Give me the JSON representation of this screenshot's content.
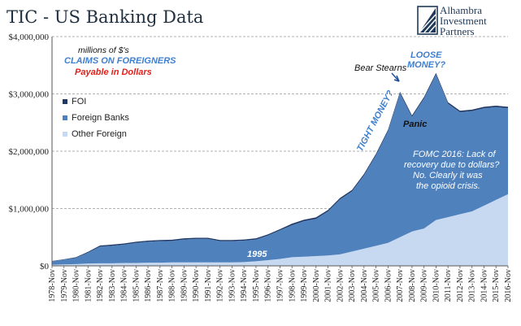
{
  "chart_data": {
    "type": "area",
    "title": "TIC - US Banking Data",
    "x": [
      "1978-Nov",
      "1979-Nov",
      "1980-Nov",
      "1981-Nov",
      "1982-Nov",
      "1983-Nov",
      "1984-Nov",
      "1985-Nov",
      "1986-Nov",
      "1987-Nov",
      "1988-Nov",
      "1989-Nov",
      "1990-Nov",
      "1991-Nov",
      "1992-Nov",
      "1993-Nov",
      "1994-Nov",
      "1995-Nov",
      "1996-Nov",
      "1997-Nov",
      "1998-Nov",
      "1999-Nov",
      "2000-Nov",
      "2001-Nov",
      "2002-Nov",
      "2003-Nov",
      "2004-Nov",
      "2005-Nov",
      "2006-Nov",
      "2007-Nov",
      "2008-Nov",
      "2009-Nov",
      "2010-Nov",
      "2011-Nov",
      "2012-Nov",
      "2013-Nov",
      "2014-Nov",
      "2015-Nov",
      "2016-Nov"
    ],
    "xtick_labels": [
      "1978-Nov",
      "1979-Nov",
      "1980-Nov",
      "1981-Nov",
      "1982-Nov",
      "1983-Nov",
      "1984-Nov",
      "1985-Nov",
      "1986-Nov",
      "1987-Nov",
      "1988-Nov",
      "1989-Nov",
      "1990-Nov",
      "1991-Nov",
      "1992-Nov",
      "1993-Nov",
      "1994-Nov",
      "1995-Nov",
      "1996-Nov",
      "1997-Nov",
      "1998-Nov",
      "1999-Nov",
      "2000-Nov",
      "2001-Nov",
      "2002-Nov",
      "2003-Nov",
      "2004-Nov",
      "2005-Nov",
      "2006-Nov",
      "2007-Nov",
      "2008-Nov",
      "2009-Nov",
      "2010-Nov",
      "2011-Nov",
      "2012-Nov",
      "2013-Nov",
      "2014-Nov",
      "2015-Nov",
      "2016-Nov"
    ],
    "yticks": [
      0,
      1000000,
      2000000,
      3000000,
      4000000
    ],
    "ytick_labels": [
      "$0",
      "$1,000,000",
      "$2,000,000",
      "$3,000,000",
      "$4,000,000"
    ],
    "ylim": [
      0,
      4000000
    ],
    "grid": true,
    "legend_position": "left",
    "stacked": true,
    "series": [
      {
        "name": "Other Foreign",
        "color": "#c6d9f0",
        "values": [
          20000,
          25000,
          30000,
          40000,
          45000,
          45000,
          50000,
          50000,
          55000,
          55000,
          60000,
          60000,
          60000,
          60000,
          60000,
          60000,
          65000,
          80000,
          100000,
          120000,
          150000,
          160000,
          170000,
          180000,
          200000,
          250000,
          300000,
          350000,
          400000,
          500000,
          600000,
          650000,
          800000,
          850000,
          900000,
          950000,
          1050000,
          1150000,
          1250000
        ]
      },
      {
        "name": "Foreign Banks",
        "color": "#4f81bd",
        "values": [
          60000,
          85000,
          110000,
          190000,
          290000,
          305000,
          320000,
          350000,
          365000,
          375000,
          375000,
          400000,
          410000,
          410000,
          370000,
          370000,
          375000,
          380000,
          430000,
          500000,
          560000,
          620000,
          650000,
          770000,
          960000,
          1050000,
          1280000,
          1580000,
          1950000,
          2510000,
          2000000,
          2270000,
          2540000,
          1980000,
          1780000,
          1750000,
          1700000,
          1620000,
          1500000
        ]
      },
      {
        "name": "FOI",
        "color": "#1f3864",
        "values": [
          5000,
          5000,
          10000,
          15000,
          20000,
          20000,
          20000,
          20000,
          20000,
          20000,
          20000,
          20000,
          20000,
          20000,
          20000,
          20000,
          20000,
          20000,
          20000,
          20000,
          25000,
          25000,
          25000,
          25000,
          25000,
          25000,
          25000,
          25000,
          25000,
          25000,
          25000,
          25000,
          25000,
          25000,
          25000,
          25000,
          25000,
          25000,
          25000
        ]
      }
    ],
    "annotations": {
      "units": "millions of $'s",
      "claims": "CLAIMS ON FOREIGNERS",
      "payable": "Payable in Dollars",
      "bear": "Bear Stearns",
      "loose1": "LOOSE",
      "loose2": "MONEY?",
      "tight": "TIGHT MONEY?",
      "panic": "Panic",
      "fomc1": "FOMC 2016: Lack of",
      "fomc2": "recovery due to dollars?",
      "fomc3": "No. Clearly it was",
      "fomc4": "the opioid crisis.",
      "y1995": "1995"
    },
    "colors": {
      "title": "#1f2f3f",
      "accent_blue": "#3f7fd0",
      "accent_red": "#e0201a",
      "grid": "#999999"
    }
  },
  "logo": {
    "line1": "Alhambra",
    "line2": "Investment",
    "line3": "Partners"
  }
}
